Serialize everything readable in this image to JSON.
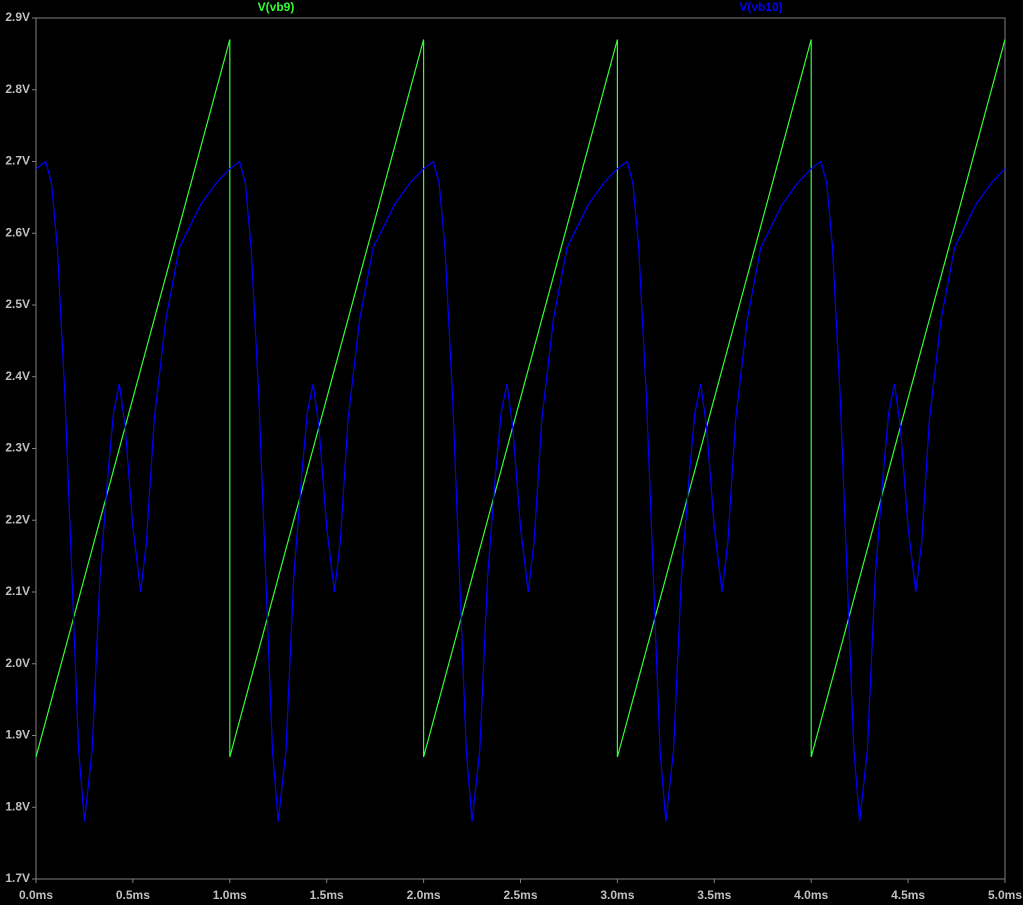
{
  "chart_data": {
    "type": "line",
    "x_scale": "linear",
    "xlim": [
      0,
      5
    ],
    "ylim": [
      1.7,
      2.9
    ],
    "xticks": [
      {
        "value": 0,
        "label": "0.0ms"
      },
      {
        "value": 0.5,
        "label": "0.5ms"
      },
      {
        "value": 1,
        "label": "1.0ms"
      },
      {
        "value": 1.5,
        "label": "1.5ms"
      },
      {
        "value": 2,
        "label": "2.0ms"
      },
      {
        "value": 2.5,
        "label": "2.5ms"
      },
      {
        "value": 3,
        "label": "3.0ms"
      },
      {
        "value": 3.5,
        "label": "3.5ms"
      },
      {
        "value": 4,
        "label": "4.0ms"
      },
      {
        "value": 4.5,
        "label": "4.5ms"
      },
      {
        "value": 5,
        "label": "5.0ms"
      }
    ],
    "yticks": [
      {
        "value": 1.7,
        "label": "1.7V"
      },
      {
        "value": 1.8,
        "label": "1.8V"
      },
      {
        "value": 1.9,
        "label": "1.9V"
      },
      {
        "value": 2.0,
        "label": "2.0V"
      },
      {
        "value": 2.1,
        "label": "2.1V"
      },
      {
        "value": 2.2,
        "label": "2.2V"
      },
      {
        "value": 2.3,
        "label": "2.3V"
      },
      {
        "value": 2.4,
        "label": "2.4V"
      },
      {
        "value": 2.5,
        "label": "2.5V"
      },
      {
        "value": 2.6,
        "label": "2.6V"
      },
      {
        "value": 2.7,
        "label": "2.7V"
      },
      {
        "value": 2.8,
        "label": "2.8V"
      },
      {
        "value": 2.9,
        "label": "2.9V"
      }
    ],
    "grid": false,
    "series": [
      {
        "name": "V(vb9)",
        "color": "#33ff33",
        "x": [
          0,
          1,
          1,
          2,
          2,
          3,
          3,
          4,
          4,
          5
        ],
        "values": [
          1.87,
          2.87,
          1.87,
          2.87,
          1.87,
          2.87,
          1.87,
          2.87,
          1.87,
          2.87
        ]
      },
      {
        "name": "V(vb10)",
        "color": "#0000ff",
        "x": [
          0,
          0.05,
          0.08,
          0.11,
          0.15,
          0.19,
          0.22,
          0.25,
          0.29,
          0.33,
          0.37,
          0.4,
          0.43,
          0.46,
          0.5,
          0.54,
          0.57,
          0.61,
          0.67,
          0.74,
          0.85,
          0.93,
          1,
          1.05,
          1.08,
          1.11,
          1.15,
          1.19,
          1.22,
          1.25,
          1.29,
          1.33,
          1.37,
          1.4,
          1.43,
          1.46,
          1.5,
          1.54,
          1.57,
          1.61,
          1.67,
          1.74,
          1.85,
          1.93,
          2,
          2.05,
          2.08,
          2.11,
          2.15,
          2.19,
          2.22,
          2.25,
          2.29,
          2.33,
          2.37,
          2.4,
          2.43,
          2.46,
          2.5,
          2.54,
          2.57,
          2.61,
          2.67,
          2.74,
          2.85,
          2.93,
          3,
          3.05,
          3.08,
          3.11,
          3.15,
          3.19,
          3.22,
          3.25,
          3.29,
          3.33,
          3.37,
          3.4,
          3.43,
          3.46,
          3.5,
          3.54,
          3.57,
          3.61,
          3.67,
          3.74,
          3.85,
          3.93,
          4,
          4.05,
          4.08,
          4.11,
          4.15,
          4.19,
          4.22,
          4.25,
          4.29,
          4.33,
          4.37,
          4.4,
          4.43,
          4.46,
          4.5,
          4.54,
          4.57,
          4.61,
          4.67,
          4.74,
          4.85,
          4.93,
          5
        ],
        "values": [
          2.69,
          2.7,
          2.67,
          2.58,
          2.37,
          2.09,
          1.88,
          1.78,
          1.88,
          2.12,
          2.26,
          2.35,
          2.39,
          2.33,
          2.19,
          2.1,
          2.17,
          2.34,
          2.48,
          2.58,
          2.64,
          2.67,
          2.69,
          2.7,
          2.67,
          2.58,
          2.37,
          2.09,
          1.88,
          1.78,
          1.88,
          2.12,
          2.26,
          2.35,
          2.39,
          2.33,
          2.19,
          2.1,
          2.17,
          2.34,
          2.48,
          2.58,
          2.64,
          2.67,
          2.69,
          2.7,
          2.67,
          2.58,
          2.37,
          2.09,
          1.88,
          1.78,
          1.88,
          2.12,
          2.26,
          2.35,
          2.39,
          2.33,
          2.19,
          2.1,
          2.17,
          2.34,
          2.48,
          2.58,
          2.64,
          2.67,
          2.69,
          2.7,
          2.67,
          2.58,
          2.37,
          2.09,
          1.88,
          1.78,
          1.88,
          2.12,
          2.26,
          2.35,
          2.39,
          2.33,
          2.19,
          2.1,
          2.17,
          2.34,
          2.48,
          2.58,
          2.64,
          2.67,
          2.69,
          2.7,
          2.67,
          2.58,
          2.37,
          2.09,
          1.88,
          1.78,
          1.88,
          2.12,
          2.26,
          2.35,
          2.39,
          2.33,
          2.19,
          2.1,
          2.17,
          2.34,
          2.48,
          2.58,
          2.64,
          2.67,
          2.69
        ]
      }
    ]
  }
}
